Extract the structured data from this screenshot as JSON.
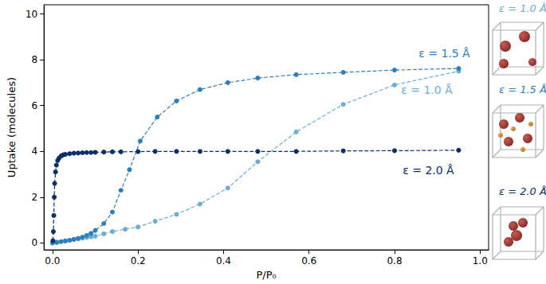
{
  "chart_data": {
    "type": "line",
    "x_label": "P/P₀",
    "y_label": "Uptake (molecules)",
    "xlim": [
      -0.02,
      1.02
    ],
    "xticks": [
      {
        "value": 0,
        "label": "0.0"
      },
      {
        "value": 0.2,
        "label": "0.2"
      },
      {
        "value": 0.4,
        "label": "0.4"
      },
      {
        "value": 0.6,
        "label": "0.6"
      },
      {
        "value": 0.8,
        "label": "0.8"
      },
      {
        "value": 1,
        "label": "1.0"
      }
    ],
    "ylim": [
      -0.3,
      10.4
    ],
    "yticks": [
      0,
      2,
      4,
      6,
      8,
      10
    ],
    "grid": false,
    "series": [
      {
        "name": "ε = 1.0 Å",
        "color": "#6aaed6",
        "marker": "circle",
        "line_style": "dashed",
        "x": [
          0.0,
          0.01,
          0.02,
          0.03,
          0.04,
          0.05,
          0.06,
          0.07,
          0.08,
          0.09,
          0.1,
          0.12,
          0.14,
          0.17,
          0.2,
          0.24,
          0.29,
          0.345,
          0.41,
          0.48,
          0.57,
          0.68,
          0.8,
          0.95
        ],
        "values": [
          0.0,
          0.03,
          0.06,
          0.09,
          0.12,
          0.15,
          0.18,
          0.21,
          0.24,
          0.27,
          0.3,
          0.4,
          0.5,
          0.6,
          0.7,
          0.95,
          1.25,
          1.7,
          2.4,
          3.55,
          4.85,
          6.05,
          6.9,
          7.5
        ]
      },
      {
        "name": "ε = 1.5 Å",
        "color": "#2f7ebc",
        "marker": "circle",
        "line_style": "dashed",
        "x": [
          0.0,
          0.01,
          0.02,
          0.03,
          0.04,
          0.05,
          0.06,
          0.07,
          0.08,
          0.09,
          0.1,
          0.12,
          0.14,
          0.16,
          0.18,
          0.205,
          0.245,
          0.29,
          0.345,
          0.41,
          0.48,
          0.57,
          0.68,
          0.8,
          0.95
        ],
        "values": [
          0.0,
          0.03,
          0.06,
          0.09,
          0.12,
          0.16,
          0.2,
          0.26,
          0.33,
          0.42,
          0.55,
          0.85,
          1.35,
          2.3,
          3.2,
          4.45,
          5.5,
          6.2,
          6.7,
          7.0,
          7.2,
          7.35,
          7.45,
          7.55,
          7.62
        ]
      },
      {
        "name": "ε = 2.0 Å",
        "color": "#0b2f66",
        "marker": "circle",
        "line_style": "dashed",
        "x": [
          0.001,
          0.002,
          0.003,
          0.004,
          0.005,
          0.007,
          0.009,
          0.012,
          0.015,
          0.02,
          0.025,
          0.03,
          0.04,
          0.05,
          0.06,
          0.07,
          0.08,
          0.09,
          0.1,
          0.12,
          0.14,
          0.16,
          0.2,
          0.24,
          0.29,
          0.345,
          0.41,
          0.48,
          0.57,
          0.68,
          0.8,
          0.95
        ],
        "values": [
          0.1,
          0.5,
          1.2,
          2.0,
          2.6,
          3.1,
          3.4,
          3.6,
          3.7,
          3.8,
          3.85,
          3.87,
          3.9,
          3.92,
          3.93,
          3.94,
          3.95,
          3.95,
          3.96,
          3.97,
          3.98,
          3.98,
          3.99,
          4.0,
          4.0,
          4.0,
          4.0,
          4.0,
          4.0,
          4.02,
          4.03,
          4.05
        ]
      }
    ]
  }
}
